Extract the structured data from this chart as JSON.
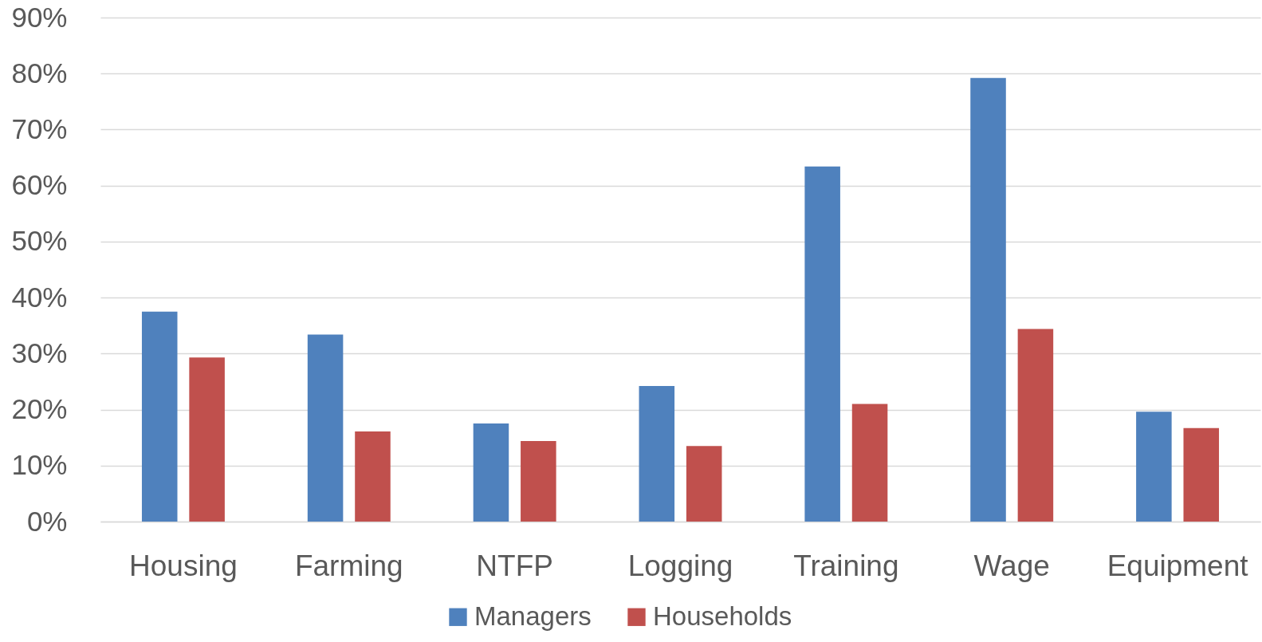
{
  "chart_data": {
    "type": "bar",
    "categories": [
      "Housing",
      "Farming",
      "NTFP",
      "Logging",
      "Training",
      "Wage",
      "Equipment"
    ],
    "series": [
      {
        "name": "Managers",
        "color": "#4f81bd",
        "values": [
          37.5,
          33.4,
          17.5,
          24.2,
          63.4,
          79.2,
          19.6
        ]
      },
      {
        "name": "Households",
        "color": "#c0504d",
        "values": [
          29.3,
          16.1,
          14.4,
          13.5,
          21.0,
          34.4,
          16.7
        ]
      }
    ],
    "ylim": [
      0,
      90
    ],
    "yticks": [
      {
        "value": 0,
        "label": "0%"
      },
      {
        "value": 10,
        "label": "10%"
      },
      {
        "value": 20,
        "label": "20%"
      },
      {
        "value": 30,
        "label": "30%"
      },
      {
        "value": 40,
        "label": "40%"
      },
      {
        "value": 50,
        "label": "50%"
      },
      {
        "value": 60,
        "label": "60%"
      },
      {
        "value": 70,
        "label": "70%"
      },
      {
        "value": 80,
        "label": "80%"
      },
      {
        "value": 90,
        "label": "90%"
      }
    ],
    "grid": "y",
    "legend": "bottom"
  }
}
